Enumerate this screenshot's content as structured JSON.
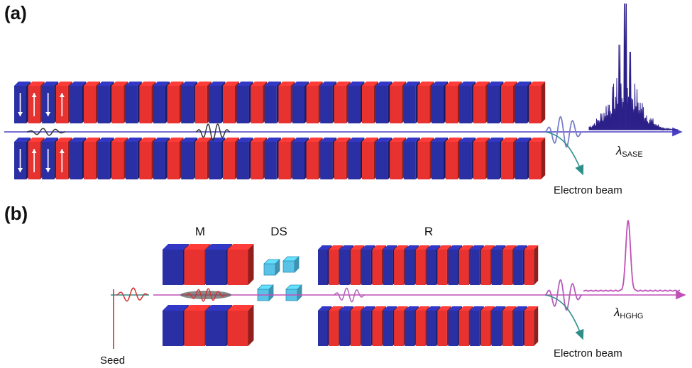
{
  "panel_a": {
    "label": "(a)",
    "spectrum_label": {
      "symbol": "λ",
      "sub": "SASE"
    },
    "beam_label": "Electron beam",
    "magnet_count": 38,
    "arrows": [
      "down",
      "up",
      "down",
      "up"
    ]
  },
  "panel_b": {
    "label": "(b)",
    "modulator_label": "M",
    "chicane_label": "DS",
    "radiator_label": "R",
    "spectrum_label": {
      "symbol": "λ",
      "sub": "HGHG"
    },
    "beam_label": "Electron beam",
    "seed_label": "Seed",
    "modulator_magnet_count": 4,
    "radiator_magnet_count": 20
  },
  "colors": {
    "magnet_red": "#e8322f",
    "magnet_blue": "#2a2fa4",
    "axis_blue": "#4a3fc4",
    "axis_pink": "#c050b8",
    "beam_teal": "#2e8f8a",
    "chicane_cyan": "#58c3e6",
    "seed_red": "#d43030",
    "sase_wave": "#7a80c8",
    "hghg_wave": "#b45fb8"
  }
}
